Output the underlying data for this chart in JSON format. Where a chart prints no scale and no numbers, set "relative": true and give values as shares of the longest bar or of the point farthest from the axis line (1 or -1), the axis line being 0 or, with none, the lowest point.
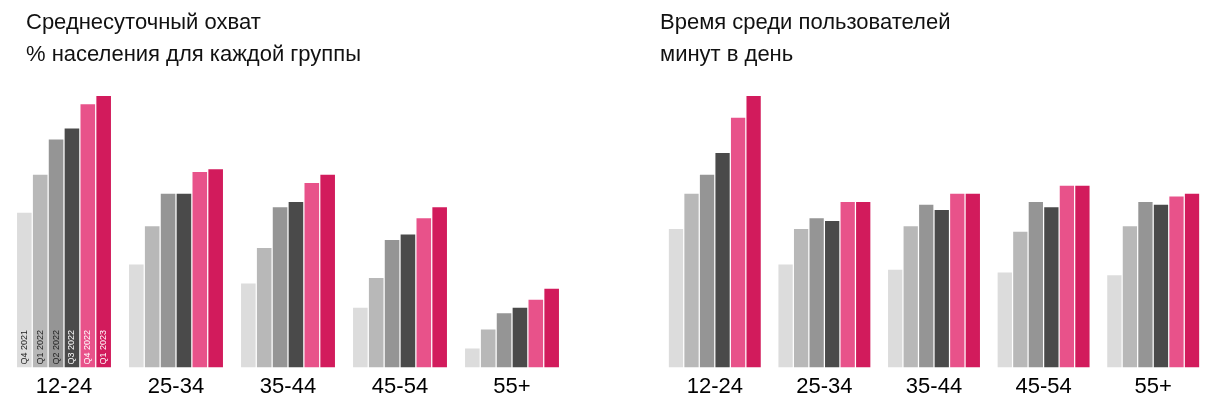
{
  "chart_data": [
    {
      "type": "bar",
      "title": "Среднесуточный охват",
      "subtitle": "% населения для каждой группы",
      "relative": true,
      "categories": [
        "12-24",
        "25-34",
        "35-44",
        "45-54",
        "55+"
      ],
      "legend": false,
      "grid": false,
      "series": [
        {
          "name": "Q4 2021",
          "color": "#dcdcdc",
          "values": [
            0.57,
            0.38,
            0.31,
            0.22,
            0.07
          ]
        },
        {
          "name": "Q1 2022",
          "color": "#b8b8b8",
          "values": [
            0.71,
            0.52,
            0.44,
            0.33,
            0.14
          ]
        },
        {
          "name": "Q2 2022",
          "color": "#959595",
          "values": [
            0.84,
            0.64,
            0.59,
            0.47,
            0.2
          ]
        },
        {
          "name": "Q3 2022",
          "color": "#4a4a4a",
          "values": [
            0.88,
            0.64,
            0.61,
            0.49,
            0.22
          ]
        },
        {
          "name": "Q4 2022",
          "color": "#e8528a",
          "values": [
            0.97,
            0.72,
            0.68,
            0.55,
            0.25
          ]
        },
        {
          "name": "Q1 2023",
          "color": "#d21b5c",
          "values": [
            1,
            0.73,
            0.71,
            0.59,
            0.29
          ]
        }
      ]
    },
    {
      "type": "bar",
      "title": "Время среди пользователей",
      "subtitle": "минут в день",
      "relative": true,
      "categories": [
        "12-24",
        "25-34",
        "35-44",
        "45-54",
        "55+"
      ],
      "legend": false,
      "grid": false,
      "series": [
        {
          "color": "#dcdcdc",
          "values": [
            0.51,
            0.38,
            0.36,
            0.35,
            0.34
          ]
        },
        {
          "color": "#b8b8b8",
          "values": [
            0.64,
            0.51,
            0.52,
            0.5,
            0.52
          ]
        },
        {
          "color": "#959595",
          "values": [
            0.71,
            0.55,
            0.6,
            0.61,
            0.61
          ]
        },
        {
          "color": "#4a4a4a",
          "values": [
            0.79,
            0.54,
            0.58,
            0.59,
            0.6
          ]
        },
        {
          "color": "#e8528a",
          "values": [
            0.92,
            0.61,
            0.64,
            0.67,
            0.63
          ]
        },
        {
          "color": "#d21b5c",
          "values": [
            1,
            0.61,
            0.64,
            0.67,
            0.64
          ]
        }
      ]
    }
  ]
}
